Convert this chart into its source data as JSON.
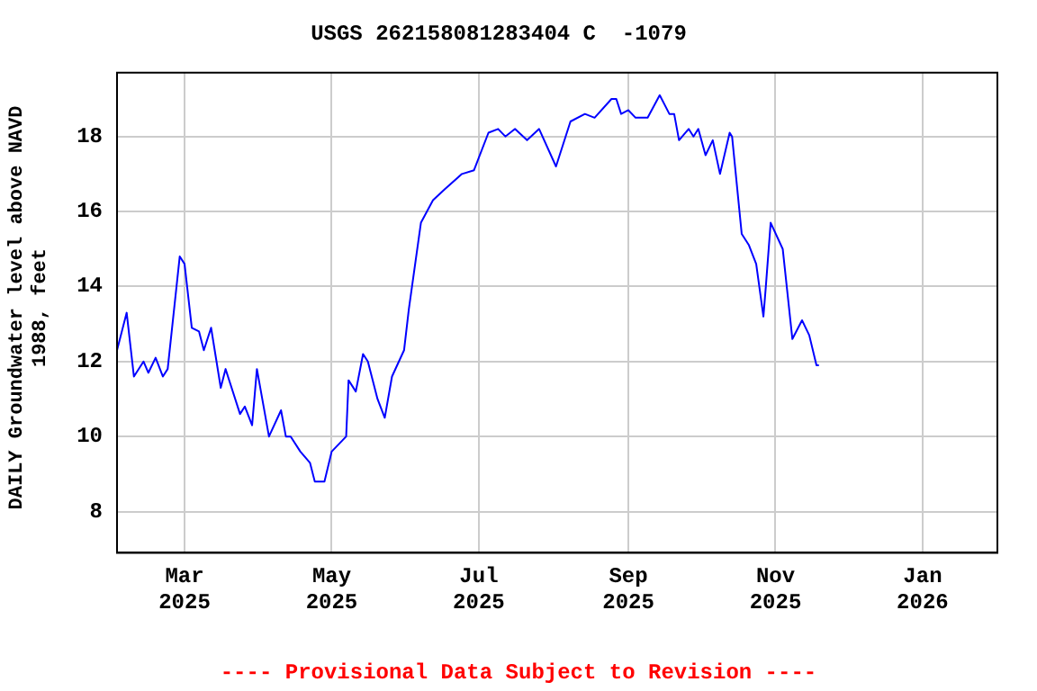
{
  "chart_data": {
    "type": "line",
    "title": "USGS 262158081283404 C  -1079",
    "ylabel": "DAILY Groundwater level above NAVD 1988, feet",
    "annotations": [
      "---- Provisional Data Subject to Revision ----"
    ],
    "series": [
      {
        "color": "#0000ff",
        "x": [
          "2025-02-01",
          "2025-02-05",
          "2025-02-08",
          "2025-02-12",
          "2025-02-14",
          "2025-02-17",
          "2025-02-20",
          "2025-02-22",
          "2025-02-27",
          "2025-03-01",
          "2025-03-04",
          "2025-03-07",
          "2025-03-09",
          "2025-03-12",
          "2025-03-16",
          "2025-03-18",
          "2025-03-24",
          "2025-03-26",
          "2025-03-29",
          "2025-03-31",
          "2025-04-05",
          "2025-04-10",
          "2025-04-12",
          "2025-04-14",
          "2025-04-18",
          "2025-04-22",
          "2025-04-24",
          "2025-04-28",
          "2025-05-01",
          "2025-05-07",
          "2025-05-08",
          "2025-05-11",
          "2025-05-14",
          "2025-05-16",
          "2025-05-20",
          "2025-05-23",
          "2025-05-26",
          "2025-05-31",
          "2025-06-02",
          "2025-06-07",
          "2025-06-12",
          "2025-06-17",
          "2025-06-24",
          "2025-06-29",
          "2025-07-05",
          "2025-07-09",
          "2025-07-12",
          "2025-07-16",
          "2025-07-21",
          "2025-07-26",
          "2025-08-02",
          "2025-08-08",
          "2025-08-14",
          "2025-08-18",
          "2025-08-25",
          "2025-08-27",
          "2025-08-29",
          "2025-09-01",
          "2025-09-04",
          "2025-09-09",
          "2025-09-14",
          "2025-09-18",
          "2025-09-20",
          "2025-09-22",
          "2025-09-26",
          "2025-09-28",
          "2025-09-30",
          "2025-10-03",
          "2025-10-06",
          "2025-10-09",
          "2025-10-13",
          "2025-10-14",
          "2025-10-18",
          "2025-10-21",
          "2025-10-24",
          "2025-10-27",
          "2025-10-28",
          "2025-10-30",
          "2025-11-04",
          "2025-11-08",
          "2025-11-12",
          "2025-11-15",
          "2025-11-18",
          "2025-11-19"
        ],
        "values": [
          12.3,
          13.3,
          11.6,
          12.0,
          11.7,
          12.1,
          11.6,
          11.8,
          14.8,
          14.6,
          12.9,
          12.8,
          12.3,
          12.9,
          11.3,
          11.8,
          10.6,
          10.8,
          10.3,
          11.8,
          10.0,
          10.7,
          10.0,
          10.0,
          9.6,
          9.3,
          8.8,
          8.8,
          9.6,
          10.0,
          11.5,
          11.2,
          12.2,
          12.0,
          11.0,
          10.5,
          11.6,
          12.3,
          13.4,
          15.7,
          16.3,
          16.6,
          17.0,
          17.1,
          18.1,
          18.2,
          18.0,
          18.2,
          17.9,
          18.2,
          17.2,
          18.4,
          18.6,
          18.5,
          19.0,
          19.0,
          18.6,
          18.7,
          18.5,
          18.5,
          19.1,
          18.6,
          18.6,
          17.9,
          18.2,
          18.0,
          18.2,
          17.5,
          17.9,
          17.0,
          18.1,
          18.0,
          15.4,
          15.1,
          14.6,
          13.2,
          14.0,
          15.7,
          15.0,
          12.6,
          13.1,
          12.7,
          11.9,
          11.9
        ]
      }
    ],
    "xlim": [
      "2025-02-01",
      "2026-02-01"
    ],
    "xticks": [
      {
        "value": "2025-03-01",
        "label": "Mar 2025"
      },
      {
        "value": "2025-05-01",
        "label": "May 2025"
      },
      {
        "value": "2025-07-01",
        "label": "Jul 2025"
      },
      {
        "value": "2025-09-01",
        "label": "Sep 2025"
      },
      {
        "value": "2025-11-01",
        "label": "Nov 2025"
      },
      {
        "value": "2026-01-01",
        "label": "Jan 2026"
      }
    ],
    "ylim": [
      6.9,
      19.7
    ],
    "yticks": [
      8,
      10,
      12,
      14,
      16,
      18
    ],
    "grid": true,
    "legend": false,
    "marker": "none",
    "line_style": "solid"
  }
}
